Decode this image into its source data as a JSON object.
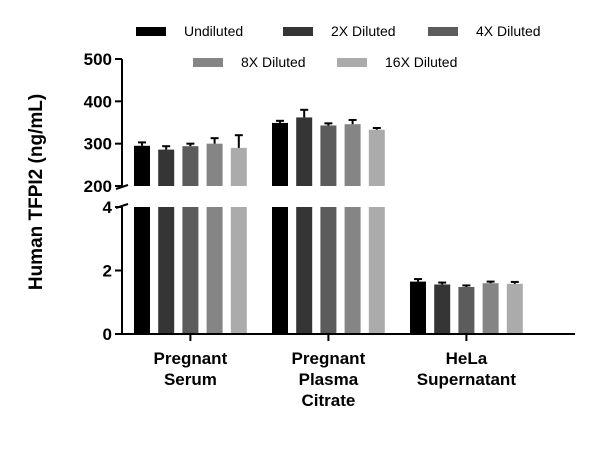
{
  "chart_data": {
    "type": "bar",
    "ylabel": "Human TFPI2 (ng/mL)",
    "xlabel": "",
    "axis_break": {
      "lower_range": [
        0,
        4
      ],
      "upper_range": [
        200,
        500
      ],
      "lower_ticks": [
        "0",
        "2",
        "4"
      ],
      "upper_ticks": [
        "200",
        "300",
        "400",
        "500"
      ]
    },
    "categories": [
      [
        "Pregnant",
        "Serum"
      ],
      [
        "Pregnant",
        "Plasma",
        "Citrate"
      ],
      [
        "HeLa",
        "Supernatant"
      ]
    ],
    "series": [
      {
        "name": "Undiluted",
        "color": "#000000",
        "values": [
          295,
          349,
          1.65
        ],
        "errors": [
          8,
          5,
          0.08
        ]
      },
      {
        "name": "2X Diluted",
        "color": "#353535",
        "values": [
          286,
          362,
          1.56
        ],
        "errors": [
          8,
          18,
          0.06
        ]
      },
      {
        "name": "4X Diluted",
        "color": "#5c5c5c",
        "values": [
          294,
          343,
          1.48
        ],
        "errors": [
          6,
          5,
          0.05
        ]
      },
      {
        "name": "8X Diluted",
        "color": "#858585",
        "values": [
          300,
          346,
          1.6
        ],
        "errors": [
          13,
          10,
          0.05
        ]
      },
      {
        "name": "16X Diluted",
        "color": "#ababab",
        "values": [
          290,
          333,
          1.58
        ],
        "errors": [
          30,
          4,
          0.06
        ]
      }
    ],
    "legend": "top"
  }
}
